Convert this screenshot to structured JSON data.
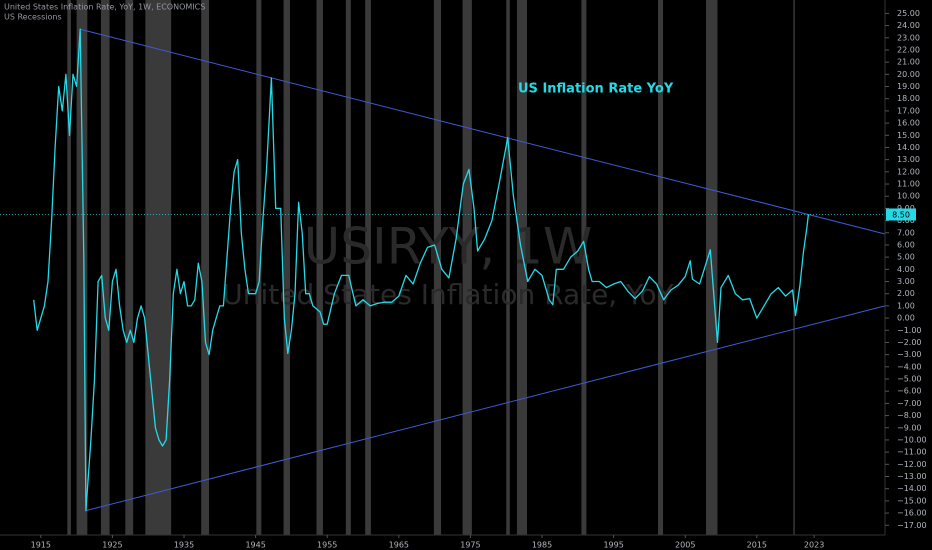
{
  "chart_data": {
    "type": "line",
    "title": "United States Inflation Rate, YoY, 1W, ECONOMICS",
    "subtitle": "US Recessions",
    "watermark": "USIRYY, 1W",
    "watermark_subtitle": "United States Inflation Rate, YoY",
    "annotation": "US Inflation Rate YoY",
    "xlim": [
      1909.3,
      2032.9
    ],
    "ylim": [
      -17.8,
      26.1
    ],
    "xticks": [
      1915,
      1925,
      1935,
      1945,
      1955,
      1965,
      1975,
      1985,
      1995,
      2005,
      2015,
      2023
    ],
    "yticks": [
      {
        "value": 25,
        "label": "25.00"
      },
      {
        "value": 24,
        "label": "24.00"
      },
      {
        "value": 23,
        "label": "23.00"
      },
      {
        "value": 22,
        "label": "22.00"
      },
      {
        "value": 21,
        "label": "21.00"
      },
      {
        "value": 20,
        "label": "20.00"
      },
      {
        "value": 19,
        "label": "19.00"
      },
      {
        "value": 18,
        "label": "18.00"
      },
      {
        "value": 17,
        "label": "17.00"
      },
      {
        "value": 16,
        "label": "16.00"
      },
      {
        "value": 15,
        "label": "15.00"
      },
      {
        "value": 14,
        "label": "14.00"
      },
      {
        "value": 13,
        "label": "13.00"
      },
      {
        "value": 12,
        "label": "12.00"
      },
      {
        "value": 11,
        "label": "11.00"
      },
      {
        "value": 10,
        "label": "10.00"
      },
      {
        "value": 9,
        "label": "9.00"
      },
      {
        "value": 8,
        "label": "8.00"
      },
      {
        "value": 7,
        "label": "7.00"
      },
      {
        "value": 6,
        "label": "6.00"
      },
      {
        "value": 5,
        "label": "5.00"
      },
      {
        "value": 4,
        "label": "4.00"
      },
      {
        "value": 3,
        "label": "3.00"
      },
      {
        "value": 2,
        "label": "2.00"
      },
      {
        "value": 1,
        "label": "1.00"
      },
      {
        "value": 0,
        "label": "0.00"
      },
      {
        "value": -1,
        "label": "−1.00"
      },
      {
        "value": -2,
        "label": "−2.00"
      },
      {
        "value": -3,
        "label": "−3.00"
      },
      {
        "value": -4,
        "label": "−4.00"
      },
      {
        "value": -5,
        "label": "−5.00"
      },
      {
        "value": -6,
        "label": "−6.00"
      },
      {
        "value": -7,
        "label": "−7.00"
      },
      {
        "value": -8,
        "label": "−8.00"
      },
      {
        "value": -9,
        "label": "−9.00"
      },
      {
        "value": -10,
        "label": "−10.00"
      },
      {
        "value": -11,
        "label": "−11.00"
      },
      {
        "value": -12,
        "label": "−12.00"
      },
      {
        "value": -13,
        "label": "−13.00"
      },
      {
        "value": -14,
        "label": "−14.00"
      },
      {
        "value": -15,
        "label": "−15.00"
      },
      {
        "value": -16,
        "label": "−16.00"
      },
      {
        "value": -17,
        "label": "−17.00"
      }
    ],
    "price_line": {
      "value": 8.5,
      "label": "8.50",
      "color": "#26d9e6"
    },
    "recessions": [
      [
        1918.7,
        1919.2
      ],
      [
        1920.0,
        1921.5
      ],
      [
        1923.4,
        1924.6
      ],
      [
        1926.8,
        1927.9
      ],
      [
        1929.6,
        1933.2
      ],
      [
        1937.4,
        1938.5
      ],
      [
        1945.1,
        1945.8
      ],
      [
        1948.9,
        1949.8
      ],
      [
        1953.5,
        1954.4
      ],
      [
        1957.6,
        1958.3
      ],
      [
        1960.3,
        1961.1
      ],
      [
        1969.9,
        1970.9
      ],
      [
        1973.9,
        1975.2
      ],
      [
        1980.0,
        1980.5
      ],
      [
        1981.5,
        1982.9
      ],
      [
        1990.5,
        1991.2
      ],
      [
        2001.2,
        2001.9
      ],
      [
        2007.9,
        2009.5
      ],
      [
        2020.1,
        2020.3
      ]
    ],
    "recession_color": "#3a3a3a",
    "trendlines": [
      {
        "color": "#3d5bd6",
        "x": [
          1920.5,
          2032.9
        ],
        "values": [
          23.7,
          6.9
        ]
      },
      {
        "color": "#3d5bd6",
        "x": [
          1921.3,
          2032.9
        ],
        "values": [
          -15.8,
          1.0
        ]
      }
    ],
    "series": [
      {
        "name": "United States Inflation Rate, YoY",
        "color": "#26d9e6",
        "x": [
          1914,
          1914.5,
          1915.5,
          1916,
          1916.5,
          1917,
          1917.5,
          1918,
          1918.5,
          1919,
          1919.5,
          1920,
          1920.5,
          1921,
          1921.3,
          1922,
          1922.5,
          1923,
          1923.5,
          1924,
          1924.5,
          1925,
          1925.5,
          1926,
          1926.5,
          1927,
          1927.5,
          1928,
          1928.5,
          1929,
          1929.5,
          1930,
          1930.5,
          1931,
          1931.5,
          1932,
          1932.5,
          1933,
          1933.5,
          1934,
          1934.5,
          1935,
          1935.5,
          1936,
          1936.5,
          1937,
          1937.5,
          1938,
          1938.5,
          1939,
          1939.5,
          1940,
          1940.5,
          1941,
          1941.5,
          1942,
          1942.5,
          1943,
          1943.5,
          1944,
          1944.5,
          1945,
          1945.5,
          1946,
          1946.5,
          1947.2,
          1947.8,
          1948.5,
          1949,
          1949.5,
          1950,
          1950.5,
          1951,
          1951.5,
          1952,
          1952.5,
          1953,
          1954,
          1954.5,
          1955,
          1956,
          1957,
          1958,
          1959,
          1960,
          1961,
          1962,
          1963,
          1964,
          1965,
          1966,
          1967,
          1968,
          1969,
          1970,
          1971,
          1972,
          1973,
          1974,
          1974.8,
          1975.5,
          1976,
          1977,
          1978,
          1979,
          1980.2,
          1981,
          1982,
          1983,
          1984,
          1985,
          1986,
          1986.5,
          1987,
          1988,
          1989,
          1990,
          1990.8,
          1991.5,
          1992,
          1993,
          1994,
          1995,
          1996,
          1997,
          1998,
          1999,
          2000,
          2001,
          2002,
          2003,
          2004,
          2005,
          2005.7,
          2006,
          2007,
          2008.5,
          2009.5,
          2010,
          2011,
          2012,
          2013,
          2014,
          2015,
          2016,
          2017,
          2018,
          2019,
          2020,
          2020.4,
          2021,
          2021.5,
          2022,
          2022.2
        ],
        "values": [
          1.5,
          -1,
          1,
          3,
          8,
          14,
          19,
          17,
          20,
          15,
          20,
          19,
          23.7,
          5,
          -15.8,
          -10,
          -5,
          3,
          3.5,
          0,
          -1,
          3,
          4,
          1,
          -1,
          -2,
          -1,
          -2,
          0,
          1,
          0,
          -3,
          -6,
          -9,
          -10,
          -10.5,
          -10,
          -5,
          2,
          4,
          2,
          3,
          1,
          1,
          1.5,
          4.5,
          3,
          -2,
          -3,
          -1,
          0,
          1,
          1,
          5,
          9,
          12,
          13,
          7,
          4,
          2,
          2,
          2,
          3,
          8,
          12,
          19.7,
          9,
          9,
          0,
          -2.9,
          -1,
          2,
          9.5,
          7,
          2,
          2,
          1,
          0.5,
          -0.5,
          -0.5,
          2,
          3.5,
          3.5,
          1,
          1.5,
          1,
          1.2,
          1.3,
          1.3,
          1.8,
          3.5,
          2.8,
          4.5,
          5.8,
          6,
          4,
          3.3,
          6.5,
          11,
          12.2,
          9,
          5.5,
          6.5,
          8,
          11,
          14.8,
          10,
          6,
          3,
          4,
          3.5,
          1.5,
          1.1,
          4,
          4,
          5,
          5.5,
          6.3,
          4,
          3,
          3,
          2.5,
          2.8,
          3,
          2.2,
          1.6,
          2.2,
          3.4,
          2.8,
          1.5,
          2.3,
          2.7,
          3.4,
          4.7,
          3.2,
          2.8,
          5.6,
          -2,
          2.5,
          3.5,
          2,
          1.5,
          1.6,
          0,
          1,
          2,
          2.5,
          1.8,
          2.3,
          0.2,
          2.6,
          5.4,
          7.5,
          8.5
        ]
      }
    ]
  }
}
